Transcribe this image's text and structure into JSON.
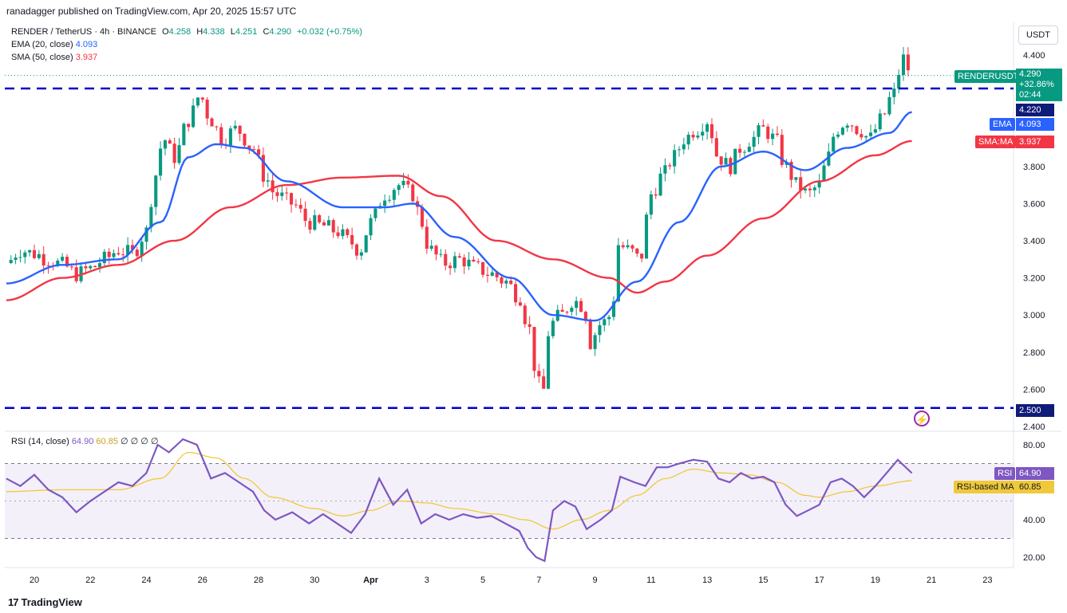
{
  "header": {
    "published": "ranadagger published on TradingView.com, Apr 20, 2025 15:57 UTC",
    "symbol": "RENDER / TetherUS · 4h · BINANCE",
    "ohlc": {
      "o_label": "O",
      "o": "4.258",
      "h_label": "H",
      "h": "4.338",
      "l_label": "L",
      "l": "4.251",
      "c_label": "C",
      "c": "4.290",
      "change": "+0.032 (+0.75%)"
    },
    "ema_legend": {
      "label": "EMA (20, close)",
      "value": "4.093"
    },
    "sma_legend": {
      "label": "SMA (50, close)",
      "value": "3.937"
    },
    "rsi_legend": {
      "label": "RSI (14, close)",
      "rsi": "64.90",
      "ma": "60.85",
      "extra": "∅ ∅ ∅ ∅"
    }
  },
  "unit_label": "USDT",
  "badges": {
    "symbol_tag": "RENDERUSDT",
    "price": "4.290",
    "pct": "+32.86%",
    "timer": "02:44",
    "level_top": "4.220",
    "ema_tag": "EMA",
    "ema": "4.093",
    "sma_tag": "SMA:MA",
    "sma": "3.937",
    "level_bottom": "2.500",
    "rsi_tag": "RSI",
    "rsi": "64.90",
    "rsi_ma_tag": "RSI-based MA",
    "rsi_ma": "60.85"
  },
  "brand": "TradingView",
  "colors": {
    "up": "#089981",
    "down": "#f23645",
    "ema": "#2962ff",
    "sma": "#f23645",
    "level": "#0000cc",
    "rsi": "#7e57c2",
    "rsi_ma": "#f0c93a"
  },
  "chart_data": {
    "type": "candlestick",
    "symbol": "RENDER / TetherUS",
    "timeframe": "4h",
    "price_axis": {
      "ticks": [
        "4.400",
        "3.800",
        "3.600",
        "3.400",
        "3.200",
        "3.000",
        "2.800",
        "2.600",
        "2.400"
      ],
      "range": [
        2.4,
        4.5
      ]
    },
    "x_ticks": [
      {
        "label": "20",
        "day": 20
      },
      {
        "label": "22",
        "day": 22
      },
      {
        "label": "24",
        "day": 24
      },
      {
        "label": "26",
        "day": 26
      },
      {
        "label": "28",
        "day": 28
      },
      {
        "label": "30",
        "day": 30
      },
      {
        "label": "Apr",
        "day": 32
      },
      {
        "label": "3",
        "day": 34
      },
      {
        "label": "5",
        "day": 36
      },
      {
        "label": "7",
        "day": 38
      },
      {
        "label": "9",
        "day": 40
      },
      {
        "label": "11",
        "day": 42
      },
      {
        "label": "13",
        "day": 44
      },
      {
        "label": "15",
        "day": 46
      },
      {
        "label": "17",
        "day": 48
      },
      {
        "label": "19",
        "day": 50
      },
      {
        "label": "21",
        "day": 52
      },
      {
        "label": "23",
        "day": 54
      }
    ],
    "horizontal_levels": [
      4.22,
      2.5
    ],
    "close_anchors": [
      [
        19.0,
        3.28
      ],
      [
        19.5,
        3.35
      ],
      [
        20.0,
        3.33
      ],
      [
        20.5,
        3.3
      ],
      [
        21.0,
        3.27
      ],
      [
        21.5,
        3.22
      ],
      [
        22.0,
        3.25
      ],
      [
        22.5,
        3.3
      ],
      [
        23.0,
        3.35
      ],
      [
        23.5,
        3.33
      ],
      [
        24.0,
        3.45
      ],
      [
        24.3,
        3.75
      ],
      [
        24.6,
        3.95
      ],
      [
        25.0,
        3.85
      ],
      [
        25.5,
        4.05
      ],
      [
        25.9,
        4.18
      ],
      [
        26.3,
        4.05
      ],
      [
        26.7,
        3.95
      ],
      [
        27.2,
        4.0
      ],
      [
        27.8,
        3.9
      ],
      [
        28.2,
        3.75
      ],
      [
        28.6,
        3.65
      ],
      [
        29.2,
        3.6
      ],
      [
        29.8,
        3.5
      ],
      [
        30.3,
        3.48
      ],
      [
        30.8,
        3.45
      ],
      [
        31.2,
        3.4
      ],
      [
        31.6,
        3.35
      ],
      [
        32.0,
        3.5
      ],
      [
        32.5,
        3.65
      ],
      [
        33.0,
        3.7
      ],
      [
        33.5,
        3.65
      ],
      [
        33.8,
        3.5
      ],
      [
        34.1,
        3.35
      ],
      [
        34.6,
        3.28
      ],
      [
        35.2,
        3.3
      ],
      [
        35.8,
        3.25
      ],
      [
        36.3,
        3.22
      ],
      [
        36.8,
        3.18
      ],
      [
        37.3,
        3.1
      ],
      [
        37.6,
        2.95
      ],
      [
        37.9,
        2.7
      ],
      [
        38.1,
        2.55
      ],
      [
        38.4,
        2.95
      ],
      [
        38.8,
        3.0
      ],
      [
        39.2,
        3.08
      ],
      [
        39.6,
        3.05
      ],
      [
        39.8,
        2.85
      ],
      [
        40.2,
        2.95
      ],
      [
        40.6,
        3.0
      ],
      [
        40.8,
        3.38
      ],
      [
        41.2,
        3.35
      ],
      [
        41.6,
        3.3
      ],
      [
        42.0,
        3.65
      ],
      [
        42.4,
        3.75
      ],
      [
        42.8,
        3.85
      ],
      [
        43.2,
        3.95
      ],
      [
        43.6,
        4.0
      ],
      [
        44.0,
        4.05
      ],
      [
        44.4,
        3.85
      ],
      [
        44.8,
        3.8
      ],
      [
        45.2,
        3.9
      ],
      [
        45.6,
        3.95
      ],
      [
        46.0,
        4.0
      ],
      [
        46.4,
        3.95
      ],
      [
        46.8,
        3.8
      ],
      [
        47.2,
        3.7
      ],
      [
        47.6,
        3.65
      ],
      [
        48.0,
        3.7
      ],
      [
        48.3,
        3.85
      ],
      [
        48.6,
        4.0
      ],
      [
        49.0,
        4.05
      ],
      [
        49.4,
        4.0
      ],
      [
        49.8,
        3.95
      ],
      [
        50.2,
        4.05
      ],
      [
        50.6,
        4.18
      ],
      [
        51.0,
        4.38
      ],
      [
        51.3,
        4.29
      ]
    ],
    "ema_anchors": [
      [
        19.0,
        3.17
      ],
      [
        21.0,
        3.27
      ],
      [
        23.0,
        3.3
      ],
      [
        24.5,
        3.5
      ],
      [
        25.5,
        3.85
      ],
      [
        26.5,
        3.92
      ],
      [
        27.5,
        3.9
      ],
      [
        29.0,
        3.72
      ],
      [
        31.0,
        3.58
      ],
      [
        32.5,
        3.58
      ],
      [
        33.5,
        3.6
      ],
      [
        35.0,
        3.42
      ],
      [
        37.0,
        3.2
      ],
      [
        38.5,
        3.0
      ],
      [
        40.0,
        2.97
      ],
      [
        41.5,
        3.18
      ],
      [
        43.0,
        3.5
      ],
      [
        44.5,
        3.8
      ],
      [
        46.0,
        3.88
      ],
      [
        47.5,
        3.78
      ],
      [
        49.0,
        3.9
      ],
      [
        50.5,
        3.98
      ],
      [
        51.3,
        4.093
      ]
    ],
    "sma_anchors": [
      [
        19.0,
        3.08
      ],
      [
        21.0,
        3.2
      ],
      [
        23.0,
        3.27
      ],
      [
        25.0,
        3.4
      ],
      [
        27.0,
        3.58
      ],
      [
        29.0,
        3.7
      ],
      [
        31.0,
        3.74
      ],
      [
        33.0,
        3.75
      ],
      [
        34.5,
        3.64
      ],
      [
        36.5,
        3.4
      ],
      [
        38.5,
        3.3
      ],
      [
        40.5,
        3.2
      ],
      [
        41.5,
        3.12
      ],
      [
        42.5,
        3.18
      ],
      [
        44.0,
        3.32
      ],
      [
        46.0,
        3.52
      ],
      [
        48.0,
        3.72
      ],
      [
        50.0,
        3.86
      ],
      [
        51.3,
        3.937
      ]
    ],
    "rsi": {
      "axis_ticks": [
        "80.00",
        "40.00",
        "20.00"
      ],
      "range": [
        15,
        85
      ],
      "bands": [
        70,
        50,
        30
      ],
      "rsi_anchors": [
        [
          19.0,
          62
        ],
        [
          19.5,
          58
        ],
        [
          20.0,
          64
        ],
        [
          20.5,
          56
        ],
        [
          21.0,
          52
        ],
        [
          21.5,
          44
        ],
        [
          22.0,
          50
        ],
        [
          22.5,
          55
        ],
        [
          23.0,
          60
        ],
        [
          23.5,
          58
        ],
        [
          24.0,
          65
        ],
        [
          24.4,
          80
        ],
        [
          24.8,
          76
        ],
        [
          25.3,
          83
        ],
        [
          25.8,
          80
        ],
        [
          26.3,
          62
        ],
        [
          26.8,
          65
        ],
        [
          27.3,
          60
        ],
        [
          27.8,
          55
        ],
        [
          28.2,
          45
        ],
        [
          28.6,
          40
        ],
        [
          29.2,
          44
        ],
        [
          29.8,
          38
        ],
        [
          30.3,
          43
        ],
        [
          30.8,
          38
        ],
        [
          31.3,
          33
        ],
        [
          31.8,
          43
        ],
        [
          32.3,
          62
        ],
        [
          32.8,
          48
        ],
        [
          33.3,
          56
        ],
        [
          33.8,
          38
        ],
        [
          34.3,
          43
        ],
        [
          34.8,
          40
        ],
        [
          35.3,
          43
        ],
        [
          35.8,
          41
        ],
        [
          36.3,
          42
        ],
        [
          36.8,
          38
        ],
        [
          37.3,
          34
        ],
        [
          37.6,
          25
        ],
        [
          37.9,
          20
        ],
        [
          38.2,
          18
        ],
        [
          38.5,
          45
        ],
        [
          38.9,
          50
        ],
        [
          39.3,
          47
        ],
        [
          39.7,
          35
        ],
        [
          40.2,
          40
        ],
        [
          40.6,
          45
        ],
        [
          40.9,
          63
        ],
        [
          41.4,
          60
        ],
        [
          41.8,
          58
        ],
        [
          42.2,
          68
        ],
        [
          42.6,
          68
        ],
        [
          43.0,
          70
        ],
        [
          43.5,
          72
        ],
        [
          44.0,
          71
        ],
        [
          44.4,
          62
        ],
        [
          44.8,
          60
        ],
        [
          45.2,
          65
        ],
        [
          45.6,
          62
        ],
        [
          46.0,
          63
        ],
        [
          46.4,
          60
        ],
        [
          46.8,
          48
        ],
        [
          47.2,
          42
        ],
        [
          47.6,
          45
        ],
        [
          48.0,
          48
        ],
        [
          48.4,
          60
        ],
        [
          48.8,
          62
        ],
        [
          49.2,
          58
        ],
        [
          49.6,
          52
        ],
        [
          50.0,
          58
        ],
        [
          50.4,
          65
        ],
        [
          50.8,
          72
        ],
        [
          51.3,
          64.9
        ]
      ],
      "ma_anchors": [
        [
          19.0,
          55
        ],
        [
          21.0,
          56
        ],
        [
          23.0,
          56
        ],
        [
          24.5,
          62
        ],
        [
          25.5,
          76
        ],
        [
          26.5,
          73
        ],
        [
          27.5,
          62
        ],
        [
          28.5,
          52
        ],
        [
          30.0,
          46
        ],
        [
          31.0,
          42
        ],
        [
          32.0,
          45
        ],
        [
          33.0,
          50
        ],
        [
          34.0,
          49
        ],
        [
          35.0,
          46
        ],
        [
          36.5,
          43
        ],
        [
          37.5,
          40
        ],
        [
          38.5,
          35
        ],
        [
          39.5,
          40
        ],
        [
          40.5,
          45
        ],
        [
          41.5,
          53
        ],
        [
          42.5,
          62
        ],
        [
          43.5,
          67
        ],
        [
          44.5,
          65
        ],
        [
          45.5,
          64
        ],
        [
          46.5,
          60
        ],
        [
          47.5,
          53
        ],
        [
          48.0,
          52
        ],
        [
          49.0,
          55
        ],
        [
          50.0,
          58
        ],
        [
          51.3,
          60.85
        ]
      ]
    }
  }
}
